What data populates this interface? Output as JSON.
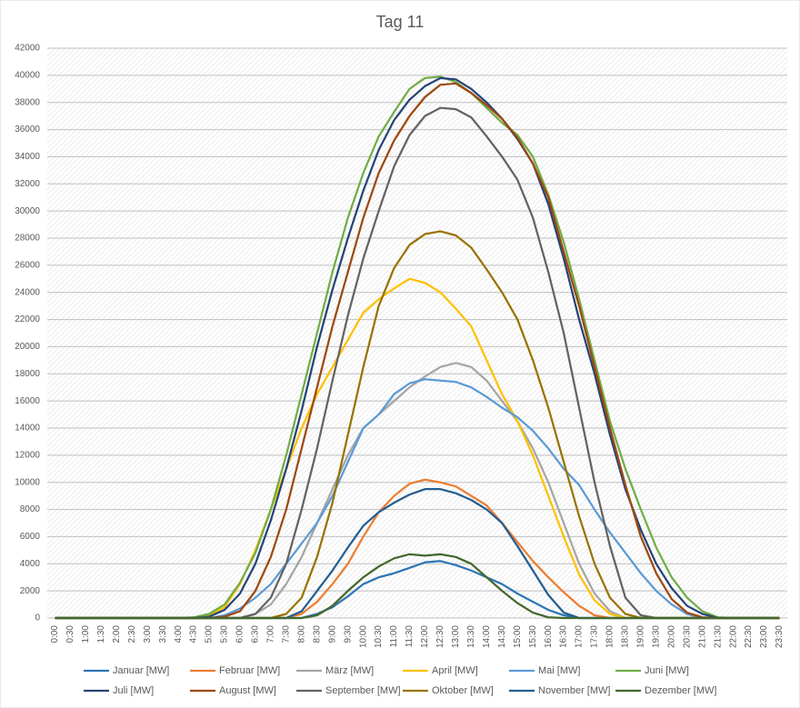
{
  "chart_data": {
    "type": "line",
    "title": "Tag 11",
    "categories": [
      "0:00",
      "0:30",
      "1:00",
      "1:30",
      "2:00",
      "2:30",
      "3:00",
      "3:30",
      "4:00",
      "4:30",
      "5:00",
      "5:30",
      "6:00",
      "6:30",
      "7:00",
      "7:30",
      "8:00",
      "8:30",
      "9:00",
      "9:30",
      "10:00",
      "10:30",
      "11:00",
      "11:30",
      "12:00",
      "12:30",
      "13:00",
      "13:30",
      "14:00",
      "14:30",
      "15:00",
      "15:30",
      "16:00",
      "16:30",
      "17:00",
      "17:30",
      "18:00",
      "18:30",
      "19:00",
      "19:30",
      "20:00",
      "20:30",
      "21:00",
      "21:30",
      "22:00",
      "22:30",
      "23:00",
      "23:30"
    ],
    "ylim": [
      0,
      42000
    ],
    "yticks": [
      0,
      2000,
      4000,
      6000,
      8000,
      10000,
      12000,
      14000,
      16000,
      18000,
      20000,
      22000,
      24000,
      26000,
      28000,
      30000,
      32000,
      34000,
      36000,
      38000,
      40000,
      42000
    ],
    "grid": true,
    "legend": "bottom",
    "series": [
      {
        "name": "Januar [MW]",
        "color": "#2e75b6",
        "values": [
          0,
          0,
          0,
          0,
          0,
          0,
          0,
          0,
          0,
          0,
          0,
          0,
          0,
          0,
          0,
          0,
          0,
          300,
          800,
          1600,
          2500,
          3000,
          3300,
          3700,
          4100,
          4200,
          3900,
          3500,
          3000,
          2500,
          1800,
          1200,
          600,
          200,
          0,
          0,
          0,
          0,
          0,
          0,
          0,
          0,
          0,
          0,
          0,
          0,
          0,
          0
        ]
      },
      {
        "name": "Februar [MW]",
        "color": "#ed7d31",
        "values": [
          0,
          0,
          0,
          0,
          0,
          0,
          0,
          0,
          0,
          0,
          0,
          0,
          0,
          0,
          0,
          0,
          300,
          1200,
          2500,
          4000,
          6000,
          7800,
          9000,
          9900,
          10200,
          10000,
          9700,
          9000,
          8300,
          7000,
          5600,
          4200,
          3000,
          1900,
          900,
          200,
          0,
          0,
          0,
          0,
          0,
          0,
          0,
          0,
          0,
          0,
          0,
          0
        ]
      },
      {
        "name": "März [MW]",
        "color": "#a5a5a5",
        "values": [
          0,
          0,
          0,
          0,
          0,
          0,
          0,
          0,
          0,
          0,
          0,
          0,
          0,
          300,
          1000,
          2500,
          4500,
          7000,
          9500,
          12000,
          14000,
          15000,
          16000,
          17000,
          17800,
          18500,
          18800,
          18500,
          17500,
          16000,
          14500,
          12500,
          10000,
          7000,
          4000,
          1800,
          500,
          0,
          0,
          0,
          0,
          0,
          0,
          0,
          0,
          0,
          0,
          0
        ]
      },
      {
        "name": "April [MW]",
        "color": "#ffc000",
        "values": [
          0,
          0,
          0,
          0,
          0,
          0,
          0,
          0,
          0,
          0,
          200,
          800,
          2500,
          5000,
          8000,
          11000,
          14000,
          16500,
          18500,
          20500,
          22500,
          23500,
          24300,
          25000,
          24700,
          24000,
          22800,
          21500,
          19000,
          16500,
          14500,
          12000,
          9000,
          6000,
          3200,
          1300,
          300,
          0,
          0,
          0,
          0,
          0,
          0,
          0,
          0,
          0,
          0,
          0
        ]
      },
      {
        "name": "Mai [MW]",
        "color": "#5b9bd5",
        "values": [
          0,
          0,
          0,
          0,
          0,
          0,
          0,
          0,
          0,
          0,
          0,
          200,
          700,
          1500,
          2500,
          4000,
          5500,
          7000,
          9000,
          11500,
          14000,
          15000,
          16500,
          17300,
          17600,
          17500,
          17400,
          17000,
          16300,
          15500,
          14800,
          13800,
          12500,
          11000,
          9800,
          8000,
          6300,
          4800,
          3300,
          2000,
          1000,
          300,
          0,
          0,
          0,
          0,
          0,
          0
        ]
      },
      {
        "name": "Juni [MW]",
        "color": "#70ad47",
        "values": [
          0,
          0,
          0,
          0,
          0,
          0,
          0,
          0,
          0,
          50,
          300,
          1000,
          2600,
          4800,
          8000,
          12000,
          16500,
          21000,
          25500,
          29500,
          32800,
          35500,
          37300,
          39000,
          39800,
          39900,
          39500,
          38700,
          37600,
          36500,
          35600,
          34000,
          31200,
          27700,
          23500,
          19000,
          14500,
          11000,
          8000,
          5200,
          3000,
          1500,
          500,
          50,
          0,
          0,
          0,
          0
        ]
      },
      {
        "name": "Juli [MW]",
        "color": "#264478",
        "values": [
          0,
          0,
          0,
          0,
          0,
          0,
          0,
          0,
          0,
          0,
          100,
          600,
          1800,
          4000,
          7200,
          11000,
          15300,
          20000,
          24200,
          28000,
          31500,
          34500,
          36700,
          38200,
          39200,
          39800,
          39700,
          39000,
          38000,
          36800,
          35300,
          33500,
          30500,
          26500,
          22000,
          18000,
          13500,
          9500,
          6500,
          4000,
          2200,
          900,
          300,
          0,
          0,
          0,
          0,
          0
        ]
      },
      {
        "name": "August [MW]",
        "color": "#9e480e",
        "values": [
          0,
          0,
          0,
          0,
          0,
          0,
          0,
          0,
          0,
          0,
          0,
          100,
          500,
          2000,
          4500,
          8000,
          12500,
          17000,
          21500,
          25500,
          29500,
          32800,
          35200,
          37000,
          38400,
          39300,
          39400,
          38700,
          37800,
          36800,
          35400,
          33500,
          31000,
          27000,
          23000,
          18500,
          14000,
          9800,
          6000,
          3300,
          1400,
          400,
          50,
          0,
          0,
          0,
          0,
          0
        ]
      },
      {
        "name": "September [MW]",
        "color": "#636363",
        "values": [
          0,
          0,
          0,
          0,
          0,
          0,
          0,
          0,
          0,
          0,
          0,
          0,
          0,
          300,
          1500,
          4000,
          8000,
          12500,
          17500,
          22300,
          26500,
          30000,
          33300,
          35600,
          37000,
          37600,
          37500,
          36900,
          35500,
          34000,
          32300,
          29500,
          25500,
          21000,
          15500,
          10000,
          5300,
          1500,
          200,
          0,
          0,
          0,
          0,
          0,
          0,
          0,
          0,
          0
        ]
      },
      {
        "name": "Oktober [MW]",
        "color": "#997300",
        "values": [
          0,
          0,
          0,
          0,
          0,
          0,
          0,
          0,
          0,
          0,
          0,
          0,
          0,
          0,
          0,
          300,
          1500,
          4500,
          8500,
          13500,
          18500,
          23000,
          25800,
          27500,
          28300,
          28500,
          28200,
          27300,
          25700,
          24000,
          22000,
          19000,
          15500,
          11500,
          7500,
          4000,
          1500,
          300,
          0,
          0,
          0,
          0,
          0,
          0,
          0,
          0,
          0,
          0
        ]
      },
      {
        "name": "November [MW]",
        "color": "#255e91",
        "values": [
          0,
          0,
          0,
          0,
          0,
          0,
          0,
          0,
          0,
          0,
          0,
          0,
          0,
          0,
          0,
          0,
          500,
          2000,
          3500,
          5200,
          6800,
          7800,
          8500,
          9100,
          9500,
          9500,
          9200,
          8700,
          8000,
          7000,
          5300,
          3500,
          1700,
          400,
          0,
          0,
          0,
          0,
          0,
          0,
          0,
          0,
          0,
          0,
          0,
          0,
          0,
          0
        ]
      },
      {
        "name": "Dezember [MW]",
        "color": "#43682b",
        "values": [
          0,
          0,
          0,
          0,
          0,
          0,
          0,
          0,
          0,
          0,
          0,
          0,
          0,
          0,
          0,
          0,
          0,
          200,
          900,
          2000,
          3000,
          3800,
          4400,
          4700,
          4600,
          4700,
          4500,
          4000,
          3000,
          2000,
          1100,
          400,
          50,
          0,
          0,
          0,
          0,
          0,
          0,
          0,
          0,
          0,
          0,
          0,
          0,
          0,
          0,
          0
        ]
      }
    ]
  }
}
